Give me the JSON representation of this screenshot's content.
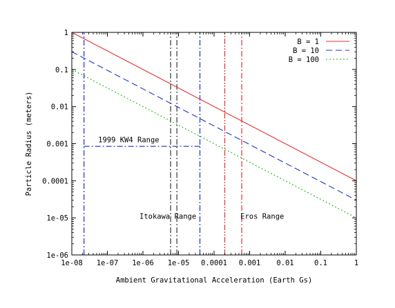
{
  "chart_data": {
    "type": "line",
    "xlabel": "Ambient Gravitational Acceleration (Earth Gs)",
    "ylabel": "Particle Radius (meters)",
    "x_scale": "log",
    "y_scale": "log",
    "xlim": [
      1e-08,
      1
    ],
    "ylim": [
      1e-06,
      1
    ],
    "x_ticks": [
      {
        "value": 1e-08,
        "label": "1e-08"
      },
      {
        "value": 1e-07,
        "label": "1e-07"
      },
      {
        "value": 1e-06,
        "label": "1e-06"
      },
      {
        "value": 1e-05,
        "label": "1e-05"
      },
      {
        "value": 0.0001,
        "label": "0.0001"
      },
      {
        "value": 0.001,
        "label": "0.001"
      },
      {
        "value": 0.01,
        "label": "0.01"
      },
      {
        "value": 0.1,
        "label": "0.1"
      },
      {
        "value": 1,
        "label": "1"
      }
    ],
    "y_ticks": [
      {
        "value": 1e-06,
        "label": "1e-06"
      },
      {
        "value": 1e-05,
        "label": "1e-05"
      },
      {
        "value": 0.0001,
        "label": "0.0001"
      },
      {
        "value": 0.001,
        "label": "0.001"
      },
      {
        "value": 0.01,
        "label": "0.01"
      },
      {
        "value": 0.1,
        "label": "0.1"
      },
      {
        "value": 1,
        "label": "1"
      }
    ],
    "grid": false,
    "legend_position": "top-right",
    "series": [
      {
        "name": "B = 1",
        "color": "#e03030",
        "dash": "solid",
        "x": [
          1e-08,
          1
        ],
        "y": [
          1,
          0.0001
        ]
      },
      {
        "name": "B = 10",
        "color": "#2030c0",
        "dash": "dashed",
        "x": [
          1e-08,
          1
        ],
        "y": [
          0.3,
          3e-05
        ]
      },
      {
        "name": "B = 100",
        "color": "#20b020",
        "dash": "dotted",
        "x": [
          1e-08,
          1
        ],
        "y": [
          0.1,
          1e-05
        ]
      }
    ],
    "vertical_lines": [
      {
        "x": 2.2e-08,
        "color": "#2030c0",
        "dash": "dashdot",
        "y_top": 1
      },
      {
        "x": 4e-05,
        "color": "#2030c0",
        "dash": "dashdot",
        "y_top": 1
      },
      {
        "x": 6e-06,
        "color": "#333333",
        "dash": "dashdot",
        "y_top": 1
      },
      {
        "x": 9e-06,
        "color": "#333333",
        "dash": "dashdot",
        "y_top": 1
      },
      {
        "x": 0.0002,
        "color": "#e03030",
        "dash": "dashdotdot",
        "y_top": 1
      },
      {
        "x": 0.0006,
        "color": "#e03030",
        "dash": "dashdot",
        "y_top": 1
      }
    ],
    "range_bar": {
      "x_from": 2.2e-08,
      "x_to": 4e-05,
      "y": 0.00085,
      "color": "#2030c0"
    },
    "annotations": [
      {
        "text": "1999 KW4 Range",
        "x": 5.5e-08,
        "y": 0.0011
      },
      {
        "text": "Itokawa Range",
        "x": 8e-07,
        "y": 9.5e-06
      },
      {
        "text": "Eros Range",
        "x": 0.00055,
        "y": 9.5e-06
      }
    ]
  }
}
